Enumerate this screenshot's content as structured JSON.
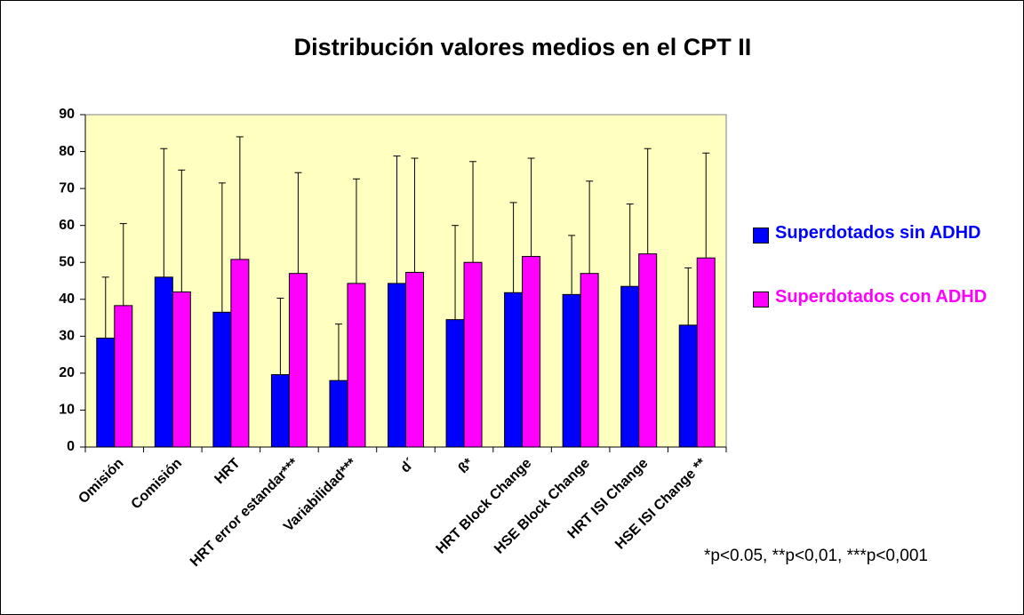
{
  "chart_data": {
    "type": "bar",
    "title": "Distribución valores medios en el CPT II",
    "categories": [
      "Omisión",
      "Comisión",
      "HRT",
      "HRT error estandar***",
      "Variabilidad***",
      "d´",
      "ß*",
      "HRT Block Change",
      "HSE Block Change",
      "HRT ISI Change",
      "HSE ISI Change **"
    ],
    "series": [
      {
        "name": "Superdotados sin ADHD",
        "color": "#0000ff",
        "values": [
          29.5,
          46,
          36.5,
          19.6,
          18,
          44.3,
          34.5,
          41.8,
          41.3,
          43.5,
          33
        ],
        "errors": [
          16.5,
          34.8,
          35,
          20.7,
          15.3,
          34.5,
          25.5,
          24.4,
          16,
          22.3,
          15.5
        ]
      },
      {
        "name": "Superdotados con ADHD",
        "color": "#ff00ff",
        "values": [
          38.3,
          42,
          50.8,
          47,
          44.3,
          47.3,
          50,
          51.6,
          47,
          52.3,
          51.2
        ],
        "errors": [
          22.2,
          33,
          33.2,
          27.3,
          28.3,
          30.9,
          27.3,
          26.6,
          25,
          28.5,
          28.4
        ]
      }
    ],
    "ylim": [
      0,
      90
    ],
    "yticks": [
      0,
      10,
      20,
      30,
      40,
      50,
      60,
      70,
      80,
      90
    ],
    "plot_background": "#ffffc0",
    "annotation": "*p<0.05, **p<0,01, ***p<0,001"
  }
}
